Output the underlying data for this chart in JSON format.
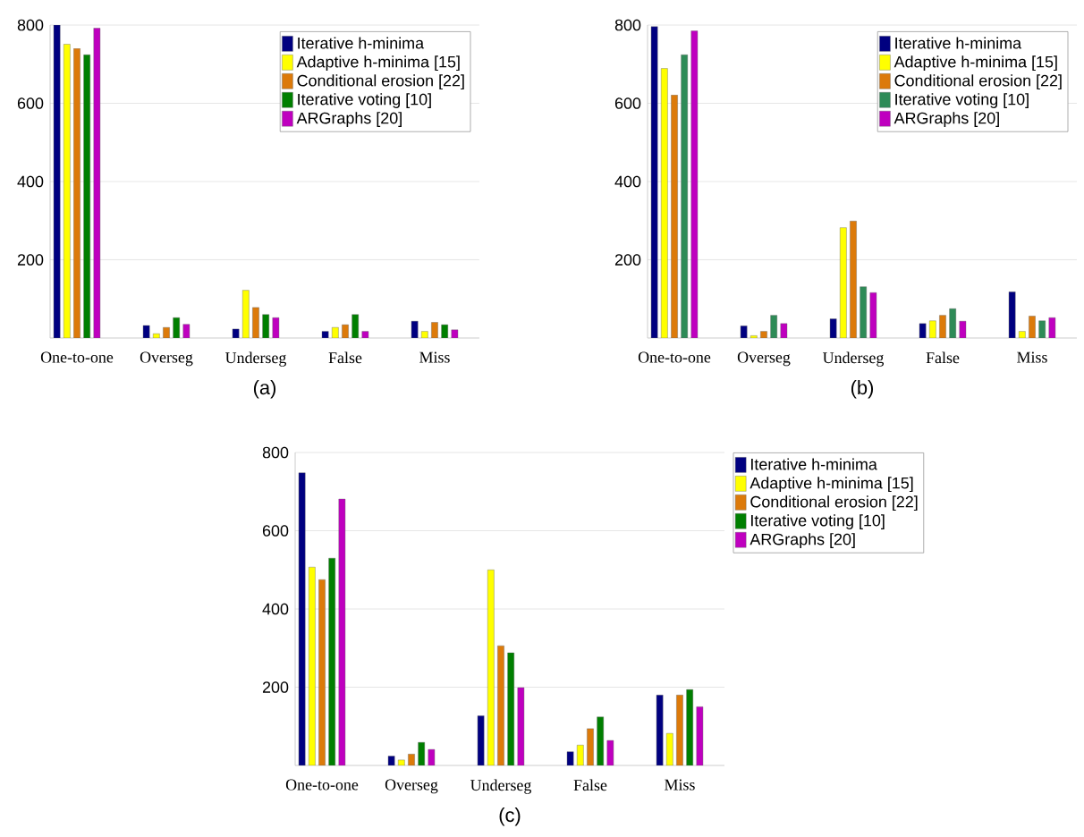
{
  "chart_data": [
    {
      "type": "bar",
      "categories": [
        "One-to-one",
        "Overseg",
        "Underseg",
        "False",
        "Miss"
      ],
      "ylim": [
        0,
        800
      ],
      "yticks": [
        200,
        400,
        600,
        800
      ],
      "grid": "y",
      "legend": "top right",
      "annotations": [
        "(a)"
      ],
      "series": [
        {
          "name": "Iterative h-minima",
          "color": "#000080",
          "values": [
            800,
            32,
            23,
            17,
            43
          ]
        },
        {
          "name": "Adaptive h-minima [15]",
          "color": "#ffff00",
          "values": [
            751,
            11,
            122,
            27,
            17
          ]
        },
        {
          "name": "Conditional erosion [22]",
          "color": "#dc7a0a",
          "values": [
            740,
            27,
            78,
            34,
            40
          ]
        },
        {
          "name": "Iterative voting [10]",
          "color": "#007f00",
          "values": [
            724,
            52,
            60,
            60,
            34
          ]
        },
        {
          "name": "ARGraphs [20]",
          "color": "#bf00bf",
          "values": [
            792,
            35,
            52,
            17,
            21
          ]
        }
      ]
    },
    {
      "type": "bar",
      "categories": [
        "One-to-one",
        "Overseg",
        "Underseg",
        "False",
        "Miss"
      ],
      "ylim": [
        0,
        800
      ],
      "yticks": [
        200,
        400,
        600,
        800
      ],
      "grid": "y",
      "legend": "top right",
      "annotations": [
        "(b)"
      ],
      "series": [
        {
          "name": "Iterative h-minima",
          "color": "#000080",
          "values": [
            796,
            31,
            49,
            37,
            118
          ]
        },
        {
          "name": "Adaptive h-minima [15]",
          "color": "#ffff00",
          "values": [
            689,
            6,
            282,
            44,
            17
          ]
        },
        {
          "name": "Conditional erosion [22]",
          "color": "#dc7a0a",
          "values": [
            621,
            17,
            299,
            58,
            56
          ]
        },
        {
          "name": "Iterative voting [10]",
          "color": "#2e8b57",
          "values": [
            724,
            58,
            131,
            75,
            44
          ]
        },
        {
          "name": "ARGraphs [20]",
          "color": "#bf00bf",
          "values": [
            785,
            37,
            116,
            43,
            52
          ]
        }
      ]
    },
    {
      "type": "bar",
      "categories": [
        "One-to-one",
        "Overseg",
        "Underseg",
        "False",
        "Miss"
      ],
      "ylim": [
        0,
        800
      ],
      "yticks": [
        200,
        400,
        600,
        800
      ],
      "grid": "y",
      "legend": "right",
      "annotations": [
        "(c)"
      ],
      "series": [
        {
          "name": "Iterative h-minima",
          "color": "#000080",
          "values": [
            748,
            24,
            127,
            35,
            180
          ]
        },
        {
          "name": "Adaptive h-minima [15]",
          "color": "#ffff00",
          "values": [
            507,
            14,
            500,
            52,
            82
          ]
        },
        {
          "name": "Conditional erosion [22]",
          "color": "#dc7a0a",
          "values": [
            475,
            29,
            306,
            94,
            180
          ]
        },
        {
          "name": "Iterative voting [10]",
          "color": "#007f00",
          "values": [
            530,
            59,
            288,
            124,
            194
          ]
        },
        {
          "name": "ARGraphs [20]",
          "color": "#bf00bf",
          "values": [
            681,
            41,
            199,
            64,
            150
          ]
        }
      ]
    }
  ]
}
